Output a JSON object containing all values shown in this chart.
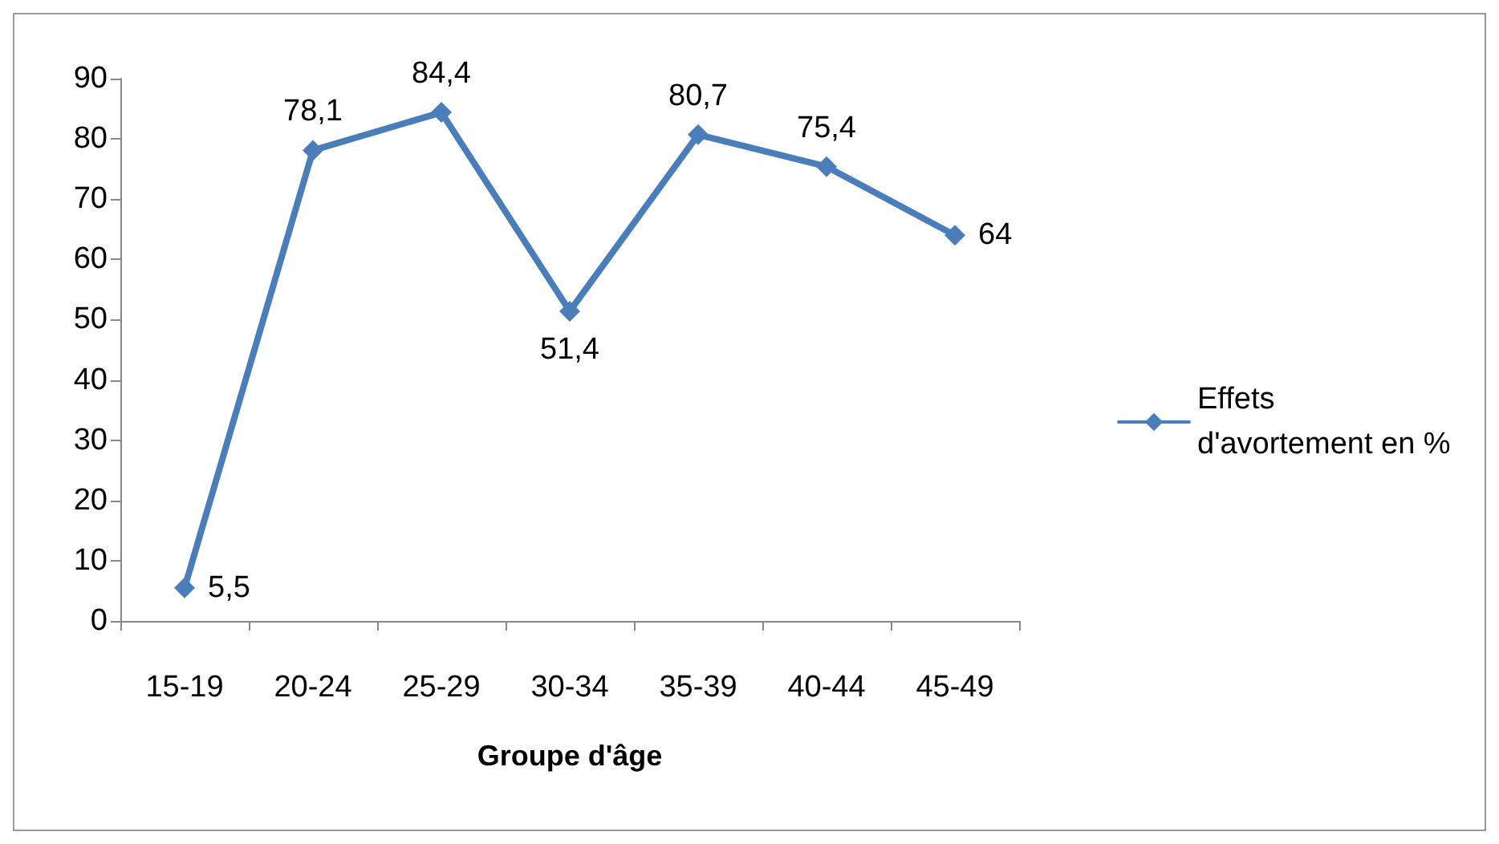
{
  "chart_data": {
    "type": "line",
    "xlabel": "Groupe d'âge",
    "categories": [
      "15-19",
      "20-24",
      "25-29",
      "30-34",
      "35-39",
      "40-44",
      "45-49"
    ],
    "series": [
      {
        "name": "Effets d'avortement en %",
        "color": "#4a7ebb",
        "values": [
          5.5,
          78.1,
          84.4,
          51.4,
          80.7,
          75.4,
          64
        ],
        "value_labels": [
          "5,5",
          "78,1",
          "84,4",
          "51,4",
          "80,7",
          "75,4",
          "64"
        ]
      }
    ],
    "ylim": [
      0,
      90
    ],
    "yticks": [
      0,
      10,
      20,
      30,
      40,
      50,
      60,
      70,
      80,
      90
    ],
    "grid": false,
    "legend": "right",
    "marker": "diamond",
    "line_style": "solid"
  }
}
